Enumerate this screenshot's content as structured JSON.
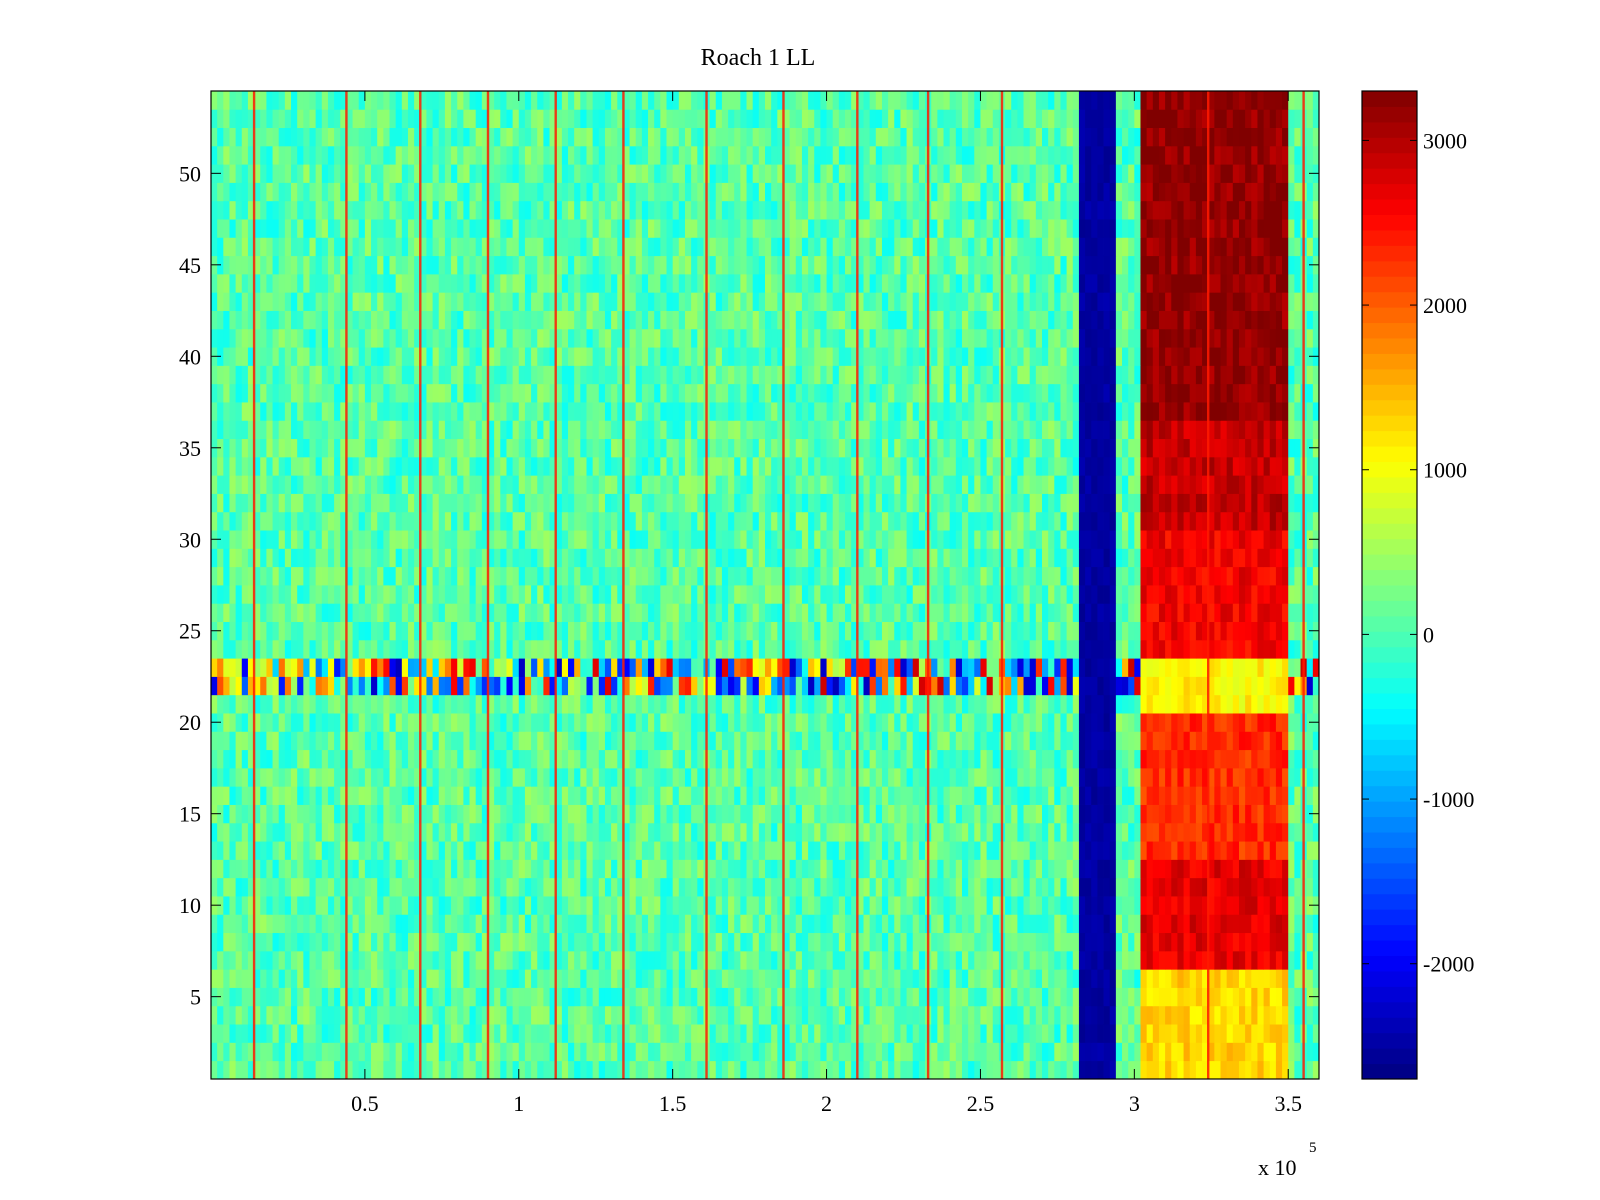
{
  "chart_data": {
    "type": "heatmap",
    "title": "Roach 1 LL",
    "xlabel": "",
    "ylabel": "",
    "x_scale_label": "x 10",
    "x_scale_exponent": "5",
    "xlim": [
      0,
      3.6
    ],
    "ylim": [
      0.5,
      54.5
    ],
    "x_ticks": [
      "0.5",
      "1",
      "1.5",
      "2",
      "2.5",
      "3",
      "3.5"
    ],
    "x_tick_values": [
      0.5,
      1,
      1.5,
      2,
      2.5,
      3,
      3.5
    ],
    "y_ticks": [
      "5",
      "10",
      "15",
      "20",
      "25",
      "30",
      "35",
      "40",
      "45",
      "50"
    ],
    "y_tick_values": [
      5,
      10,
      15,
      20,
      25,
      30,
      35,
      40,
      45,
      50
    ],
    "colorbar": {
      "colormap": "jet",
      "range": [
        -2700,
        3300
      ],
      "ticks": [
        "-2000",
        "-1000",
        "0",
        "1000",
        "2000",
        "3000"
      ],
      "tick_values": [
        -2000,
        -1000,
        0,
        1000,
        2000,
        3000
      ]
    },
    "rows": 54,
    "background_value": 50,
    "regions": [
      {
        "label": "low band",
        "x_range": [
          2.82,
          2.93
        ],
        "rows": [
          1,
          54
        ],
        "value": -2500
      },
      {
        "label": "high block",
        "x_range": [
          3.03,
          3.5
        ],
        "rows": [
          1,
          6
        ],
        "value": 1300
      },
      {
        "label": "high block",
        "x_range": [
          3.03,
          3.5
        ],
        "rows": [
          7,
          12
        ],
        "value": 2700
      },
      {
        "label": "high block",
        "x_range": [
          3.03,
          3.5
        ],
        "rows": [
          13,
          20
        ],
        "value": 2300
      },
      {
        "label": "high block",
        "x_range": [
          3.03,
          3.5
        ],
        "rows": [
          21,
          23
        ],
        "value": 1100
      },
      {
        "label": "high block",
        "x_range": [
          3.03,
          3.5
        ],
        "rows": [
          24,
          30
        ],
        "value": 2600
      },
      {
        "label": "high block",
        "x_range": [
          3.03,
          3.5
        ],
        "rows": [
          31,
          36
        ],
        "value": 2900
      },
      {
        "label": "high block",
        "x_range": [
          3.03,
          3.5
        ],
        "rows": [
          37,
          54
        ],
        "value": 3200
      }
    ],
    "noisy_rows": [
      22,
      23
    ],
    "spike_columns": [
      0.14,
      0.44,
      0.68,
      0.9,
      1.12,
      1.34,
      1.61,
      1.86,
      2.1,
      2.33,
      2.57,
      3.24,
      3.55
    ]
  }
}
